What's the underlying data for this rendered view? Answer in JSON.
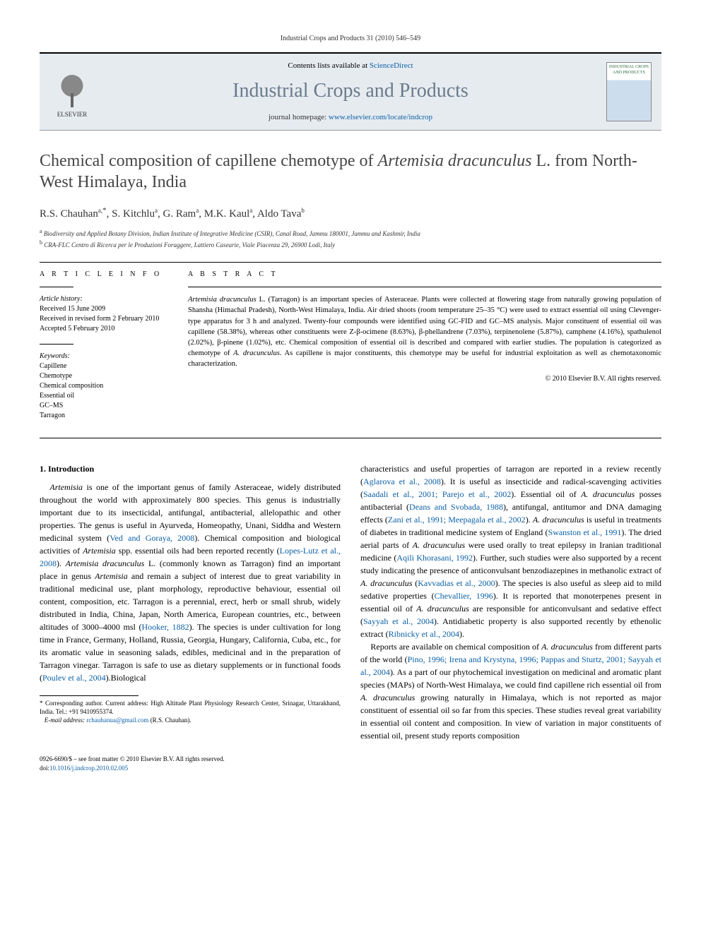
{
  "colors": {
    "link": "#0b5fa5",
    "masthead_bg": "#e6ebf0",
    "title_gray": "#454545",
    "journal_gray": "#6a7a8a"
  },
  "running_head": "Industrial Crops and Products 31 (2010) 546–549",
  "masthead": {
    "publisher_name": "ELSEVIER",
    "contents_prefix": "Contents lists available at ",
    "contents_link_text": "ScienceDirect",
    "journal_title": "Industrial Crops and Products",
    "homepage_prefix": "journal homepage: ",
    "homepage_url": "www.elsevier.com/locate/indcrop",
    "cover_label": "INDUSTRIAL CROPS AND PRODUCTS"
  },
  "article": {
    "title_pre": "Chemical composition of capillene chemotype of ",
    "title_ital": "Artemisia dracunculus",
    "title_post": " L. from North-West Himalaya, India",
    "authors_html": "R.S. Chauhan<sup>a,</sup><span class='corr'>*</span>, S. Kitchlu<sup>a</sup>, G. Ram<sup>a</sup>, M.K. Kaul<sup>a</sup>, Aldo Tava<sup>b</sup>",
    "affiliations": {
      "a": "Biodiversity and Applied Botany Division, Indian Institute of Integrative Medicine (CSIR), Canal Road, Jammu 180001, Jammu and Kashmir, India",
      "b": "CRA-FLC Centro di Ricerca per le Produzioni Foraggere, Lattiero Casearie, Viale Piacenza 29, 26900 Lodi, Italy"
    }
  },
  "article_info": {
    "heading": "a r t i c l e   i n f o",
    "history_label": "Article history:",
    "received": "Received 15 June 2009",
    "revised": "Received in revised form 2 February 2010",
    "accepted": "Accepted 5 February 2010",
    "keywords_label": "Keywords:",
    "keywords": [
      "Capillene",
      "Chemotype",
      "Chemical composition",
      "Essential oil",
      "GC–MS",
      "Tarragon"
    ]
  },
  "abstract": {
    "heading": "a b s t r a c t",
    "text_html": "<span class='ital'>Artemisia dracunculus</span> L. (Tarragon) is an important species of Asteraceae. Plants were collected at flowering stage from naturally growing population of Shansha (Himachal Pradesh), North-West Himalaya, India. Air dried shoots (room temperature 25–35 °C) were used to extract essential oil using Clevenger-type apparatus for 3 h and analyzed. Twenty-four compounds were identified using GC-FID and GC–MS analysis. Major constituent of essential oil was capillene (58.38%), whereas other constituents were Z-β-ocimene (8.63%), β-phellandrene (7.03%), terpinenolene (5.87%), camphene (4.16%), spathulenol (2.02%), β-pinene (1.02%), etc. Chemical composition of essential oil is described and compared with earlier studies. The population is categorized as chemotype of <span class='ital'>A. dracunculus</span>. As capillene is major constituents, this chemotype may be useful for industrial exploitation as well as chemotaxonomic characterization.",
    "copyright": "© 2010 Elsevier B.V. All rights reserved."
  },
  "body": {
    "section_heading": "1. Introduction",
    "col1_p1_html": "<span class='ital'>Artemisia</span> is one of the important genus of family Asteraceae, widely distributed throughout the world with approximately 800 species. This genus is industrially important due to its insecticidal, antifungal, antibacterial, allelopathic and other properties. The genus is useful in Ayurveda, Homeopathy, Unani, Siddha and Western medicinal system (<span class='ref'>Ved and Goraya, 2008</span>). Chemical composition and biological activities of <span class='ital'>Artemisia</span> spp. essential oils had been reported recently (<span class='ref'>Lopes-Lutz et al., 2008</span>). <span class='ital'>Artemisia dracunculus</span> L. (commonly known as Tarragon) find an important place in genus <span class='ital'>Artemisia</span> and remain a subject of interest due to great variability in traditional medicinal use, plant morphology, reproductive behaviour, essential oil content, composition, etc. Tarragon is a perennial, erect, herb or small shrub, widely distributed in India, China, Japan, North America, European countries, etc., between altitudes of 3000–4000 msl (<span class='ref'>Hooker, 1882</span>). The species is under cultivation for long time in France, Germany, Holland, Russia, Georgia, Hungary, California, Cuba, etc., for its aromatic value in seasoning salads, edibles, medicinal and in the preparation of Tarragon vinegar. Tarragon is safe to use as dietary supplements or in functional foods (<span class='ref'>Poulev et al., 2004</span>).Biological",
    "col2_p1_html": "characteristics and useful properties of tarragon are reported in a review recently (<span class='ref'>Aglarova et al., 2008</span>). It is useful as insecticide and radical-scavenging activities (<span class='ref'>Saadali et al., 2001; Parejo et al., 2002</span>). Essential oil of <span class='ital'>A. dracunculus</span> posses antibacterial (<span class='ref'>Deans and Svobada, 1988</span>), antifungal, antitumor and DNA damaging effects (<span class='ref'>Zani et al., 1991; Meepagala et al., 2002</span>). <span class='ital'>A. dracunculus</span> is useful in treatments of diabetes in traditional medicine system of England (<span class='ref'>Swanston et al., 1991</span>). The dried aerial parts of <span class='ital'>A. dracunculus</span> were used orally to treat epilepsy in Iranian traditional medicine (<span class='ref'>Aqili Khorasani, 1992</span>). Further, such studies were also supported by a recent study indicating the presence of anticonvulsant benzodiazepines in methanolic extract of <span class='ital'>A. dracunculus</span> (<span class='ref'>Kavvadias et al., 2000</span>). The species is also useful as sleep aid to mild sedative properties (<span class='ref'>Chevallier, 1996</span>). It is reported that monoterpenes present in essential oil of <span class='ital'>A. dracunculus</span> are responsible for anticonvulsant and sedative effect (<span class='ref'>Sayyah et al., 2004</span>). Antidiabetic property is also supported recently by ethenolic extract (<span class='ref'>Ribnicky et al., 2004</span>).",
    "col2_p2_html": "Reports are available on chemical composition of <span class='ital'>A. dracunculus</span> from different parts of the world (<span class='ref'>Pino, 1996; Irena and Krystyna, 1996; Pappas and Sturtz, 2001; Sayyah et al., 2004</span>). As a part of our phytochemical investigation on medicinal and aromatic plant species (MAPs) of North-West Himalaya, we could find capillene rich essential oil from <span class='ital'>A. dracunculus</span> growing naturally in Himalaya, which is not reported as major constituent of essential oil so far from this species. These studies reveal great variability in essential oil content and composition. In view of variation in major constituents of essential oil, present study reports composition"
  },
  "footnotes": {
    "corr_html": "* Corresponding author. Current address: High Altitude Plant Physiology Research Center, Srinagar, Uttarakhand, India. Tel.: +91 9410955374.",
    "email_label": "E-mail address:",
    "email": "rchauhanua@gmail.com",
    "email_who": "(R.S. Chauhan)."
  },
  "footer": {
    "line1": "0926-6690/$ – see front matter © 2010 Elsevier B.V. All rights reserved.",
    "doi_prefix": "doi:",
    "doi": "10.1016/j.indcrop.2010.02.005"
  }
}
